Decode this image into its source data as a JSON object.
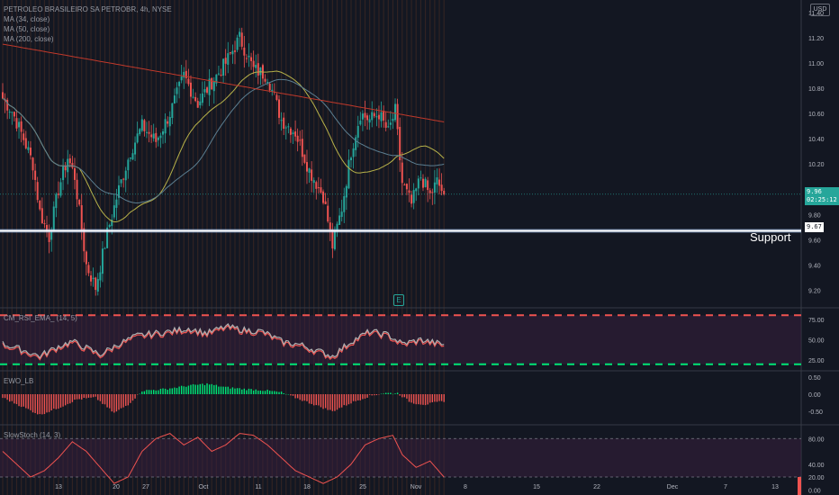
{
  "legend": {
    "title": "PETROLEO BRASILEIRO SA PETROBR, 4h, NYSE",
    "ma34": "MA (34, close)",
    "ma50": "MA (50, close)",
    "ma200": "MA (200, close)"
  },
  "currency": "USD",
  "last_price_label": "9.96",
  "countdown": "02:25:12",
  "support_label": "Support",
  "support_price_label": "9.67",
  "earnings_icon_glyph": "E",
  "colors": {
    "background": "#131722",
    "up": "#26a69a",
    "down": "#ef5350",
    "ma34": "#b7b24a",
    "ma50": "#5c7f91",
    "ma200": "#c0392b",
    "support": "#ffffff"
  },
  "chart_data": [
    {
      "type": "candlestick",
      "title": "PETROLEO BRASILEIRO SA PETROBR, 4h, NYSE",
      "x_ticks": [
        "13",
        "20",
        "27",
        "Oct",
        "11",
        "18",
        "25",
        "Nov",
        "8",
        "15",
        "22",
        "Dec",
        "7",
        "13"
      ],
      "y_ticks": [
        "11.40",
        "11.20",
        "11.00",
        "10.80",
        "10.60",
        "10.40",
        "10.20",
        "10.00",
        "9.80",
        "9.60",
        "9.40",
        "9.20"
      ],
      "ylim": [
        9.06,
        11.5
      ],
      "support_level": 9.67,
      "last_price": 9.96,
      "close_anchors": [
        [
          0,
          10.72
        ],
        [
          4,
          10.62
        ],
        [
          9,
          10.4
        ],
        [
          13,
          10.2
        ],
        [
          16,
          9.82
        ],
        [
          20,
          9.62
        ],
        [
          24,
          10.0
        ],
        [
          28,
          10.25
        ],
        [
          31,
          10.1
        ],
        [
          36,
          9.4
        ],
        [
          40,
          9.22
        ],
        [
          45,
          9.65
        ],
        [
          50,
          10.0
        ],
        [
          55,
          10.3
        ],
        [
          60,
          10.5
        ],
        [
          66,
          10.38
        ],
        [
          72,
          10.6
        ],
        [
          78,
          10.9
        ],
        [
          84,
          10.68
        ],
        [
          90,
          10.85
        ],
        [
          96,
          11.0
        ],
        [
          102,
          11.2
        ],
        [
          108,
          10.95
        ],
        [
          114,
          10.9
        ],
        [
          120,
          10.55
        ],
        [
          126,
          10.45
        ],
        [
          132,
          10.15
        ],
        [
          138,
          9.95
        ],
        [
          142,
          9.55
        ],
        [
          146,
          9.85
        ],
        [
          150,
          10.3
        ],
        [
          154,
          10.6
        ],
        [
          158,
          10.55
        ],
        [
          162,
          10.6
        ],
        [
          166,
          10.45
        ],
        [
          169,
          10.62
        ],
        [
          172,
          10.05
        ],
        [
          176,
          9.88
        ],
        [
          180,
          10.1
        ],
        [
          184,
          9.95
        ],
        [
          187,
          10.06
        ],
        [
          190,
          9.96
        ]
      ]
    },
    {
      "type": "line",
      "title": "CM_RSI_EMA_ (14, 5)",
      "y_ticks": [
        "75.00",
        "50.00",
        "25.00"
      ],
      "ylim": [
        12,
        88
      ],
      "overbought": 80,
      "oversold": 20,
      "rsi_anchors": [
        [
          0,
          45
        ],
        [
          8,
          38
        ],
        [
          16,
          30
        ],
        [
          24,
          42
        ],
        [
          30,
          48
        ],
        [
          36,
          40
        ],
        [
          42,
          32
        ],
        [
          50,
          45
        ],
        [
          58,
          55
        ],
        [
          66,
          58
        ],
        [
          72,
          60
        ],
        [
          80,
          64
        ],
        [
          88,
          58
        ],
        [
          96,
          66
        ],
        [
          104,
          62
        ],
        [
          112,
          60
        ],
        [
          120,
          48
        ],
        [
          128,
          44
        ],
        [
          136,
          36
        ],
        [
          142,
          30
        ],
        [
          150,
          48
        ],
        [
          158,
          60
        ],
        [
          166,
          56
        ],
        [
          172,
          45
        ],
        [
          180,
          50
        ],
        [
          190,
          44
        ]
      ]
    },
    {
      "type": "bar",
      "title": "EWO_LB",
      "y_ticks": [
        "0.50",
        "0.00",
        "-0.50"
      ],
      "ylim": [
        -0.75,
        0.8
      ],
      "ewo_anchors": [
        [
          0,
          -0.1
        ],
        [
          8,
          -0.35
        ],
        [
          16,
          -0.6
        ],
        [
          24,
          -0.4
        ],
        [
          32,
          -0.15
        ],
        [
          40,
          -0.1
        ],
        [
          48,
          -0.55
        ],
        [
          54,
          -0.3
        ],
        [
          60,
          0.1
        ],
        [
          70,
          0.15
        ],
        [
          80,
          0.25
        ],
        [
          88,
          0.3
        ],
        [
          96,
          0.2
        ],
        [
          104,
          0.15
        ],
        [
          112,
          0.12
        ],
        [
          120,
          0.05
        ],
        [
          126,
          -0.1
        ],
        [
          134,
          -0.3
        ],
        [
          142,
          -0.5
        ],
        [
          150,
          -0.25
        ],
        [
          158,
          -0.05
        ],
        [
          164,
          0.03
        ],
        [
          170,
          0.03
        ],
        [
          176,
          -0.25
        ],
        [
          182,
          -0.3
        ],
        [
          190,
          -0.2
        ]
      ]
    },
    {
      "type": "line",
      "title": "SlowStoch (14, 3)",
      "y_ticks": [
        "80.00",
        "40.00",
        "20.00",
        "0.00"
      ],
      "ylim": [
        -8,
        100
      ],
      "upper_band": 80,
      "lower_band": 20,
      "stoch_anchors": [
        [
          0,
          60
        ],
        [
          6,
          40
        ],
        [
          12,
          20
        ],
        [
          18,
          30
        ],
        [
          24,
          50
        ],
        [
          30,
          75
        ],
        [
          36,
          60
        ],
        [
          42,
          35
        ],
        [
          48,
          10
        ],
        [
          54,
          20
        ],
        [
          60,
          60
        ],
        [
          66,
          80
        ],
        [
          72,
          88
        ],
        [
          78,
          70
        ],
        [
          84,
          82
        ],
        [
          90,
          60
        ],
        [
          96,
          70
        ],
        [
          102,
          88
        ],
        [
          108,
          85
        ],
        [
          114,
          70
        ],
        [
          120,
          50
        ],
        [
          126,
          30
        ],
        [
          132,
          20
        ],
        [
          138,
          10
        ],
        [
          144,
          20
        ],
        [
          150,
          40
        ],
        [
          156,
          70
        ],
        [
          162,
          80
        ],
        [
          168,
          85
        ],
        [
          172,
          55
        ],
        [
          178,
          35
        ],
        [
          184,
          45
        ],
        [
          190,
          20
        ]
      ]
    }
  ]
}
